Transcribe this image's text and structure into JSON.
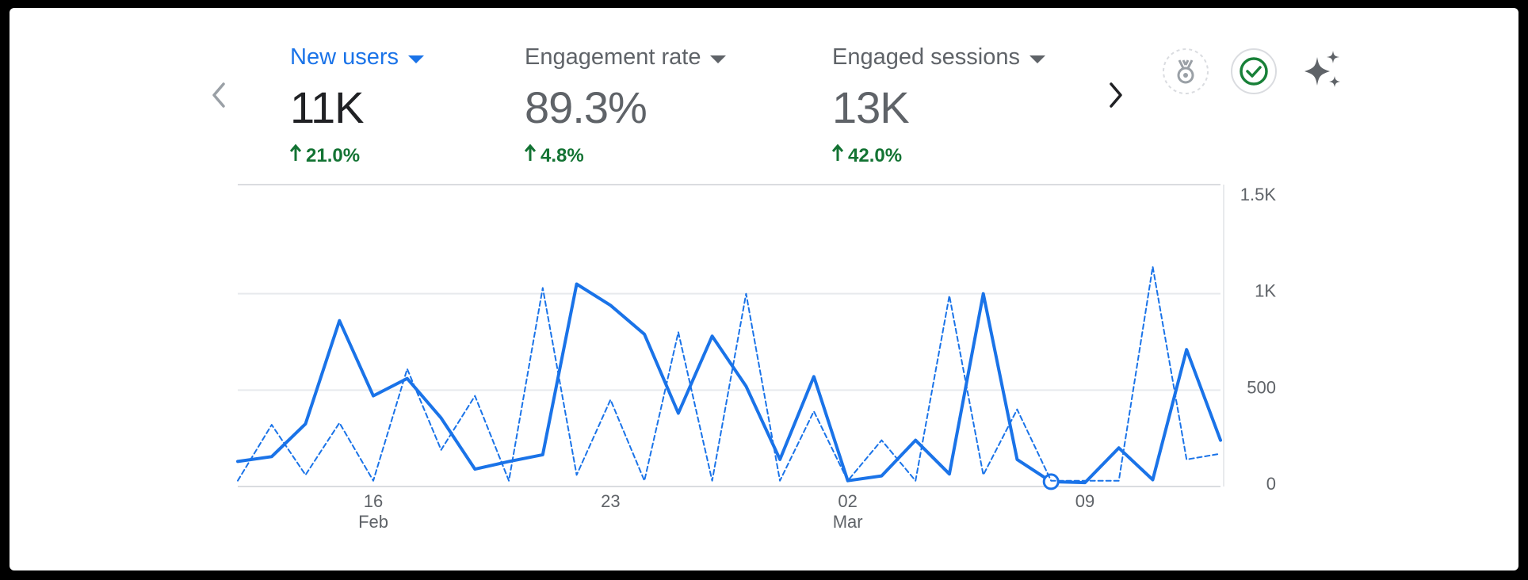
{
  "metrics": [
    {
      "title": "New users",
      "value": "11K",
      "change": "21.0%",
      "active": true
    },
    {
      "title": "Engagement rate",
      "value": "89.3%",
      "change": "4.8%",
      "active": false
    },
    {
      "title": "Engaged sessions",
      "value": "13K",
      "change": "42.0%",
      "active": false
    }
  ],
  "icons": {
    "prev": "chevron-left-icon",
    "next": "chevron-right-icon",
    "badge": "medal-icon",
    "verified": "check-circle-icon",
    "insights": "sparkle-icon"
  },
  "colors": {
    "accent": "#1a73e8",
    "positive": "#137333",
    "check": "#188038",
    "grid": "#dadce0",
    "axis_text": "#5f6368"
  },
  "chart_data": {
    "type": "line",
    "x": [
      "Feb 12",
      "Feb 13",
      "Feb 14",
      "Feb 15",
      "Feb 16",
      "Feb 17",
      "Feb 18",
      "Feb 19",
      "Feb 20",
      "Feb 21",
      "Feb 22",
      "Feb 23",
      "Feb 24",
      "Feb 25",
      "Feb 26",
      "Feb 27",
      "Feb 28",
      "Mar 01",
      "Mar 02",
      "Mar 03",
      "Mar 04",
      "Mar 05",
      "Mar 06",
      "Mar 07",
      "Mar 08",
      "Mar 09",
      "Mar 10",
      "Mar 11",
      "Mar 12",
      "Mar 13"
    ],
    "series": [
      {
        "style": "solid",
        "values": [
          130,
          155,
          325,
          860,
          470,
          560,
          355,
          90,
          130,
          165,
          1050,
          940,
          790,
          380,
          780,
          520,
          140,
          570,
          30,
          55,
          240,
          65,
          1000,
          140,
          25,
          20,
          200,
          35,
          710,
          240
        ],
        "highlight_index": 24
      },
      {
        "style": "dashed",
        "values": [
          30,
          320,
          60,
          330,
          30,
          610,
          190,
          470,
          30,
          1030,
          60,
          450,
          30,
          800,
          30,
          1000,
          30,
          390,
          30,
          240,
          30,
          990,
          60,
          400,
          30,
          30,
          30,
          1140,
          140,
          170
        ]
      }
    ],
    "x_ticks": [
      {
        "day": "16",
        "month": "Feb",
        "index": 4
      },
      {
        "day": "23",
        "index": 11
      },
      {
        "day": "02",
        "month": "Mar",
        "index": 18
      },
      {
        "day": "09",
        "index": 25
      }
    ],
    "y_ticks": [
      {
        "value": 1500,
        "label": "1.5K"
      },
      {
        "value": 1000,
        "label": "1K"
      },
      {
        "value": 500,
        "label": "500"
      },
      {
        "value": 0,
        "label": "0"
      }
    ],
    "ylim": [
      0,
      1500
    ],
    "grid": true,
    "y_axis_side": "right"
  }
}
